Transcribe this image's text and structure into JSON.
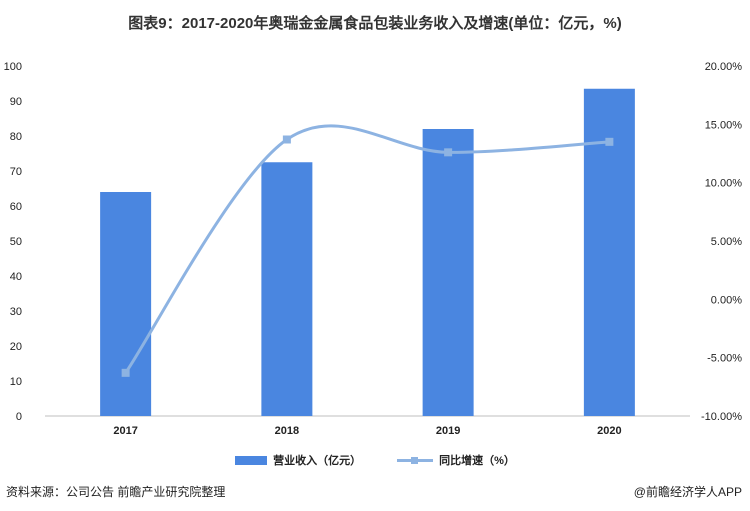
{
  "title": "图表9：2017-2020年奥瑞金金属食品包装业务收入及增速(单位：亿元，%)",
  "source": "资料来源：公司公告 前瞻产业研究院整理",
  "brand": "@前瞻经济学人APP",
  "chart_data": {
    "type": "bar",
    "categories": [
      "2017",
      "2018",
      "2019",
      "2020"
    ],
    "series": [
      {
        "name": "营业收入（亿元）",
        "type": "bar",
        "axis": "left",
        "values": [
          64.0,
          72.5,
          82.0,
          93.5
        ]
      },
      {
        "name": "同比增速（%）",
        "type": "line",
        "axis": "right",
        "values": [
          -6.3,
          13.7,
          12.6,
          13.5
        ]
      }
    ],
    "y_left": {
      "min": 0,
      "max": 100,
      "step": 10,
      "ticks": [
        "0",
        "10",
        "20",
        "30",
        "40",
        "50",
        "60",
        "70",
        "80",
        "90",
        "100"
      ]
    },
    "y_right": {
      "min": -10,
      "max": 20,
      "step": 5,
      "ticks": [
        "-10.00%",
        "-5.00%",
        "0.00%",
        "5.00%",
        "10.00%",
        "15.00%",
        "20.00%"
      ]
    },
    "colors": {
      "bar": "#4a86e0",
      "line": "#8db3e2"
    },
    "legend_position": "bottom",
    "grid": false
  }
}
